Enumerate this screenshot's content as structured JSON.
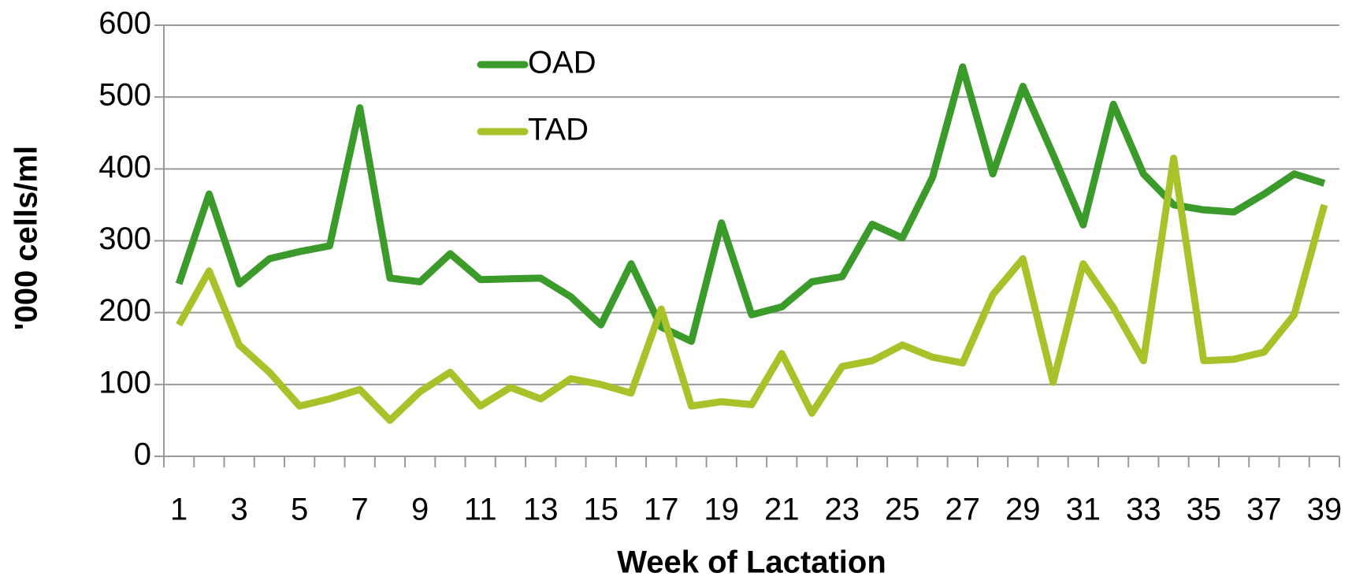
{
  "chart_data": {
    "type": "line",
    "xlabel": "Week of Lactation",
    "ylabel": "'000 cells/ml",
    "categories": [
      1,
      null,
      3,
      null,
      5,
      null,
      7,
      null,
      9,
      null,
      11,
      null,
      13,
      null,
      15,
      null,
      17,
      null,
      19,
      null,
      21,
      null,
      23,
      null,
      25,
      null,
      27,
      null,
      29,
      null,
      31,
      null,
      33,
      null,
      35,
      null,
      37,
      null,
      39
    ],
    "series": [
      {
        "name": "OAD",
        "color": "#3a9a2a",
        "values": [
          240,
          365,
          240,
          275,
          285,
          293,
          485,
          248,
          243,
          282,
          246,
          247,
          248,
          222,
          183,
          268,
          180,
          160,
          325,
          197,
          208,
          243,
          250,
          323,
          304,
          388,
          542,
          393,
          515,
          420,
          322,
          490,
          393,
          350,
          343,
          340,
          365,
          393,
          380
        ]
      },
      {
        "name": "TAD",
        "color": "#a8c22a",
        "values": [
          183,
          258,
          155,
          117,
          70,
          80,
          93,
          50,
          90,
          117,
          70,
          96,
          80,
          108,
          100,
          88,
          205,
          70,
          76,
          72,
          143,
          60,
          125,
          133,
          155,
          138,
          130,
          225,
          275,
          103,
          268,
          207,
          133,
          415,
          133,
          135,
          145,
          197,
          350
        ]
      }
    ],
    "ylim": [
      0,
      600
    ],
    "yticks": [
      0,
      100,
      200,
      300,
      400,
      500,
      600
    ],
    "grid": true
  }
}
